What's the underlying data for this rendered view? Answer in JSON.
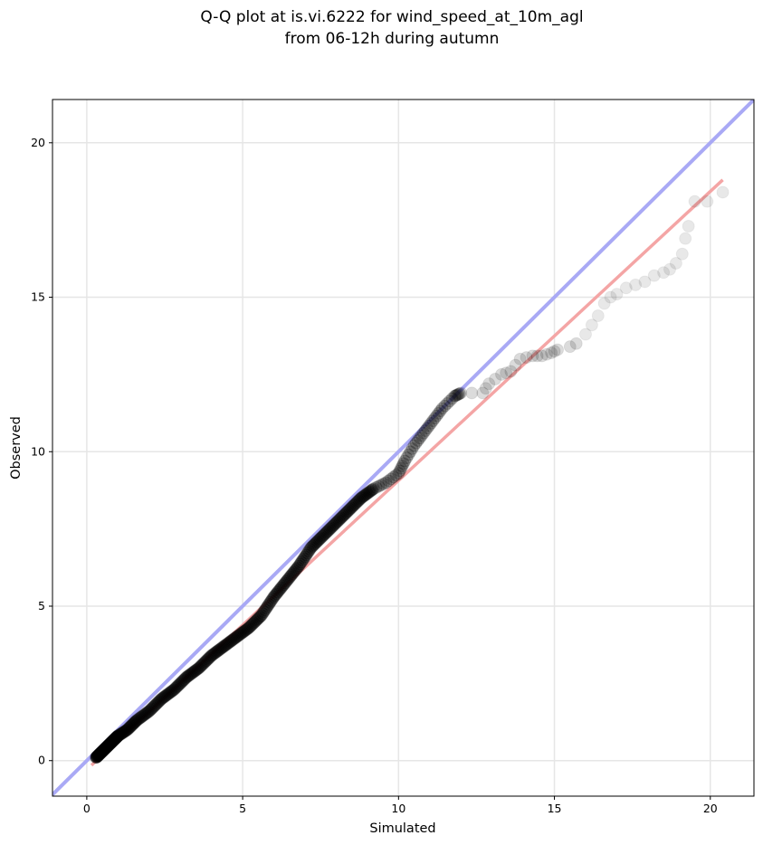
{
  "chart_data": {
    "type": "scatter",
    "title": "Q-Q plot at is.vi.6222 for wind_speed_at_10m_agl\nfrom 06-12h during autumn",
    "xlabel": "Simulated",
    "ylabel": "Observed",
    "xlim": [
      -1.1,
      21.4
    ],
    "ylim": [
      -1.15,
      21.4
    ],
    "xticks": [
      0,
      5,
      10,
      15,
      20
    ],
    "yticks": [
      0,
      5,
      10,
      15,
      20
    ],
    "grid": true,
    "colors": {
      "identity_line": "#a9a9f5",
      "fit_line": "#f4a5a5",
      "points": "#000000",
      "grid": "#e6e6e6"
    },
    "series": [
      {
        "role": "quantiles",
        "points": [
          [
            0.3,
            0.1
          ],
          [
            0.4,
            0.2
          ],
          [
            0.5,
            0.3
          ],
          [
            0.6,
            0.4
          ],
          [
            0.7,
            0.5
          ],
          [
            0.8,
            0.6
          ],
          [
            0.9,
            0.7
          ],
          [
            1.0,
            0.8
          ],
          [
            1.3,
            1.0
          ],
          [
            1.6,
            1.3
          ],
          [
            2.0,
            1.6
          ],
          [
            2.4,
            2.0
          ],
          [
            2.8,
            2.3
          ],
          [
            3.2,
            2.7
          ],
          [
            3.6,
            3.0
          ],
          [
            4.0,
            3.4
          ],
          [
            4.4,
            3.7
          ],
          [
            4.8,
            4.0
          ],
          [
            5.2,
            4.3
          ],
          [
            5.6,
            4.7
          ],
          [
            6.0,
            5.3
          ],
          [
            6.4,
            5.8
          ],
          [
            6.8,
            6.3
          ],
          [
            7.2,
            6.9
          ],
          [
            7.6,
            7.3
          ],
          [
            8.0,
            7.7
          ],
          [
            8.4,
            8.1
          ],
          [
            8.8,
            8.5
          ],
          [
            9.2,
            8.8
          ],
          [
            9.6,
            9.0
          ],
          [
            10.0,
            9.3
          ],
          [
            10.2,
            9.7
          ],
          [
            10.5,
            10.2
          ],
          [
            10.8,
            10.6
          ],
          [
            11.1,
            11.0
          ],
          [
            11.4,
            11.4
          ],
          [
            11.8,
            11.8
          ],
          [
            12.0,
            11.9
          ],
          [
            12.7,
            11.9
          ],
          [
            12.9,
            12.2
          ],
          [
            13.3,
            12.5
          ],
          [
            13.6,
            12.6
          ],
          [
            13.9,
            13.0
          ],
          [
            14.3,
            13.1
          ],
          [
            14.6,
            13.1
          ],
          [
            14.9,
            13.2
          ],
          [
            15.1,
            13.3
          ],
          [
            15.5,
            13.4
          ],
          [
            15.7,
            13.5
          ],
          [
            16.0,
            13.8
          ],
          [
            16.2,
            14.1
          ],
          [
            16.4,
            14.4
          ],
          [
            16.6,
            14.8
          ],
          [
            16.8,
            15.0
          ],
          [
            17.0,
            15.1
          ],
          [
            17.3,
            15.3
          ],
          [
            17.6,
            15.4
          ],
          [
            17.9,
            15.5
          ],
          [
            18.2,
            15.7
          ],
          [
            18.5,
            15.8
          ],
          [
            18.7,
            15.9
          ],
          [
            18.9,
            16.1
          ],
          [
            19.1,
            16.4
          ],
          [
            19.2,
            16.9
          ],
          [
            19.3,
            17.3
          ],
          [
            19.5,
            18.1
          ],
          [
            19.9,
            18.1
          ],
          [
            20.4,
            18.4
          ]
        ]
      },
      {
        "role": "identity",
        "x": [
          -1.1,
          21.4
        ],
        "y": [
          -1.1,
          21.4
        ]
      },
      {
        "role": "fit",
        "x": [
          0.15,
          20.4
        ],
        "y": [
          -0.15,
          18.8
        ]
      }
    ]
  }
}
